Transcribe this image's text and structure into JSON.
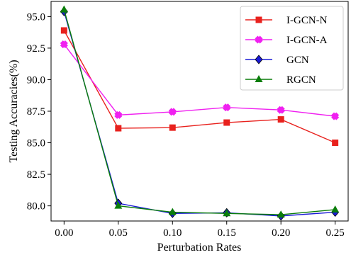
{
  "chart_data": {
    "type": "line",
    "xlabel": "Perturbation Rates",
    "ylabel": "Testing Accuracies(%)",
    "x": [
      0.0,
      0.05,
      0.1,
      0.15,
      0.2,
      0.25
    ],
    "x_tick_labels": [
      "0.00",
      "0.05",
      "0.10",
      "0.15",
      "0.20",
      "0.25"
    ],
    "y_ticks": [
      80.0,
      82.5,
      85.0,
      87.5,
      90.0,
      92.5,
      95.0
    ],
    "y_tick_labels": [
      "80.0",
      "82.5",
      "85.0",
      "87.5",
      "90.0",
      "92.5",
      "95.0"
    ],
    "xlim": [
      -0.012,
      0.262
    ],
    "ylim": [
      78.8,
      96.2
    ],
    "grid": false,
    "legend_position": "top-right",
    "series": [
      {
        "name": "I-GCN-N",
        "color": "#e8211d",
        "marker": "square",
        "values": [
          93.9,
          86.15,
          86.2,
          86.6,
          86.85,
          85.0
        ]
      },
      {
        "name": "I-GCN-A",
        "color": "#f020f0",
        "marker": "x-filled",
        "values": [
          92.8,
          87.2,
          87.45,
          87.8,
          87.6,
          87.1
        ]
      },
      {
        "name": "GCN",
        "color": "#1a1ad6",
        "marker": "diamond",
        "values": [
          95.4,
          80.2,
          79.4,
          79.45,
          79.2,
          79.5
        ]
      },
      {
        "name": "RGCN",
        "color": "#0a7d0a",
        "marker": "triangle",
        "values": [
          95.55,
          80.0,
          79.5,
          79.4,
          79.3,
          79.7
        ]
      }
    ]
  }
}
